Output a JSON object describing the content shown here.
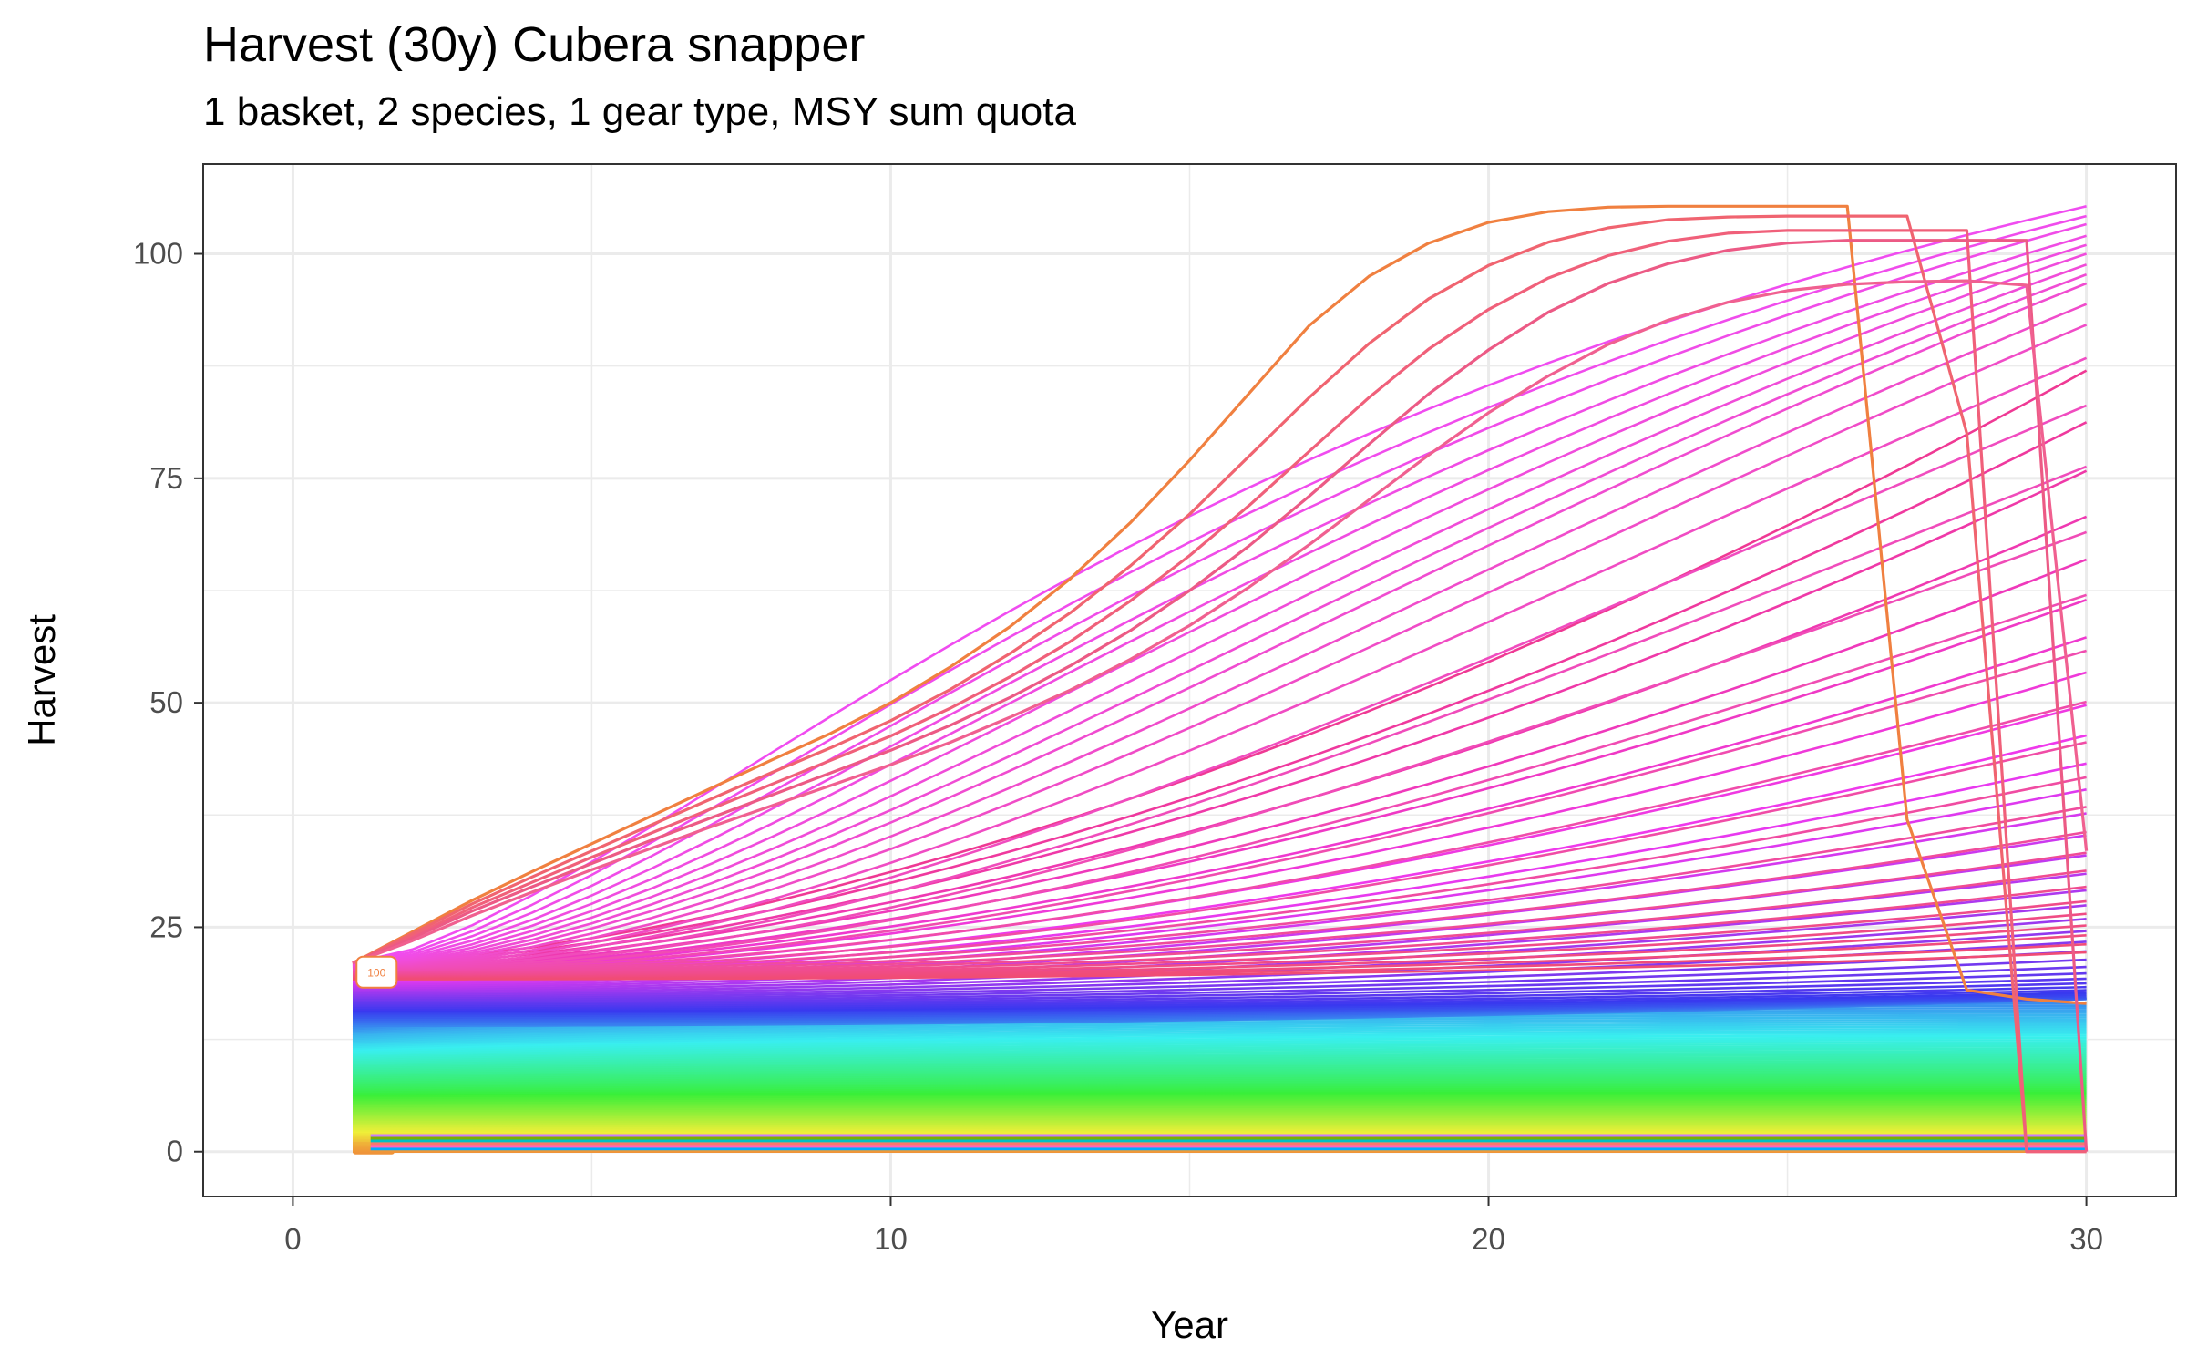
{
  "chart_data": {
    "type": "line",
    "title": "Harvest (30y) Cubera snapper",
    "subtitle": "1 basket, 2 species, 1 gear type, MSY sum quota",
    "xlabel": "Year",
    "ylabel": "Harvest",
    "xlim": [
      -1.5,
      31.5
    ],
    "ylim": [
      -5,
      110
    ],
    "x_ticks": [
      0,
      10,
      20,
      30
    ],
    "y_ticks": [
      0,
      25,
      50,
      75,
      100
    ],
    "grid": true,
    "legend": "none",
    "x": [
      1,
      2,
      3,
      4,
      5,
      6,
      7,
      8,
      9,
      10,
      11,
      12,
      13,
      14,
      15,
      16,
      17,
      18,
      19,
      20,
      21,
      22,
      23,
      24,
      25,
      26,
      27,
      28,
      29,
      30
    ],
    "ensemble": {
      "count": 120,
      "start_range": [
        0,
        21
      ],
      "color_map": "hue-rainbow",
      "top_final_values": [
        105.3,
        104.2,
        103.3,
        102.0,
        101.0,
        100.0,
        98.8,
        97.7,
        96.7,
        94.4,
        92.1,
        88.4,
        83.1,
        76.3,
        69.0,
        62.0,
        55.8,
        50.1,
        45.6,
        41.7,
        38.4,
        35.6,
        33.3,
        31.3,
        29.5,
        27.9,
        26.5,
        25.2,
        24.1,
        23.1,
        22.2
      ]
    },
    "highlight_series": [
      {
        "name": "",
        "color": "#f08040",
        "values": [
          21.0,
          24.5,
          28.0,
          31.2,
          34.3,
          37.4,
          40.5,
          43.6,
          46.6,
          50.0,
          54.0,
          58.5,
          63.8,
          70.0,
          77.0,
          84.5,
          92.0,
          97.5,
          101.2,
          103.5,
          104.7,
          105.2,
          105.3,
          105.3,
          105.3,
          105.3,
          37.0,
          18.0,
          17.0,
          16.5
        ]
      },
      {
        "name": "",
        "color": "#f06470",
        "values": [
          21.0,
          24.3,
          27.6,
          30.6,
          33.5,
          36.4,
          39.3,
          42.2,
          45.0,
          48.0,
          51.5,
          55.5,
          60.0,
          65.2,
          71.0,
          77.5,
          84.0,
          90.0,
          95.0,
          98.7,
          101.3,
          102.9,
          103.8,
          104.1,
          104.2,
          104.2,
          104.2,
          80.0,
          0.0,
          0.0
        ]
      },
      {
        "name": "",
        "color": "#f0607a",
        "values": [
          21.0,
          24.0,
          27.2,
          30.0,
          32.8,
          35.5,
          38.2,
          40.9,
          43.6,
          46.3,
          49.4,
          52.9,
          56.8,
          61.3,
          66.4,
          72.0,
          78.0,
          84.0,
          89.4,
          93.8,
          97.3,
          99.8,
          101.4,
          102.3,
          102.6,
          102.6,
          102.6,
          102.6,
          0.0,
          0.0
        ]
      },
      {
        "name": "",
        "color": "#ec5a85",
        "values": [
          21.0,
          23.8,
          26.8,
          29.5,
          32.1,
          34.7,
          37.2,
          39.7,
          42.2,
          44.7,
          47.5,
          50.6,
          54.1,
          58.0,
          62.5,
          67.5,
          73.0,
          78.8,
          84.4,
          89.3,
          93.5,
          96.7,
          98.9,
          100.4,
          101.2,
          101.5,
          101.5,
          101.5,
          101.5,
          0.0
        ]
      },
      {
        "name": "",
        "color": "#f06090",
        "values": [
          21.0,
          23.5,
          26.3,
          28.9,
          31.4,
          33.8,
          36.2,
          38.5,
          40.8,
          43.1,
          45.6,
          48.4,
          51.4,
          54.8,
          58.6,
          62.9,
          67.6,
          72.6,
          77.6,
          82.3,
          86.4,
          89.9,
          92.6,
          94.6,
          95.9,
          96.6,
          96.9,
          97.0,
          96.5,
          33.5
        ]
      }
    ],
    "labels": [
      {
        "text": "100",
        "x": 1.4,
        "y": 20
      }
    ]
  }
}
